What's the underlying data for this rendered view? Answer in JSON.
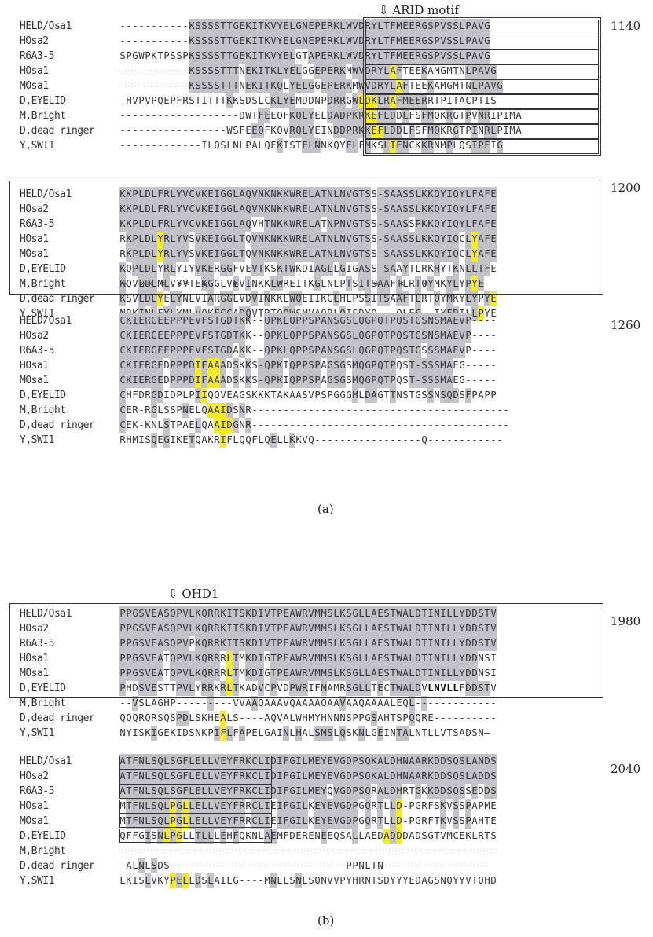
{
  "figure": {
    "panel_a": {
      "caption": "(a)",
      "motif_label": "⇩ ARID motif",
      "stars": "*  ** *  **  *    *                      *   *   *",
      "blocks": [
        {
          "number": "1140",
          "rows": [
            {
              "label": "HELD/Osa1",
              "seq": "-----------KSSSSTTGEKITKVYELGNEPERKLWVDRYLTFMEERGSPVSSLPAVG",
              "shade": "...........GGGGGGGGGGGGGGGGGGGGGGGGGGGGGGGGGGGGGGGGGGGGGGGGGG"
            },
            {
              "label": "HOsa2",
              "seq": "-----------KSSSSTTGEKITKVYELGNEPERKLWVDRYLTFMEERGSPVSSLPAVG",
              "shade": "...........GGGGGGGGGGGGGGGGGGGGGGGGGGGGGGGGGGGGGGGGGGGGGGGGGGG"
            },
            {
              "label": "R6A3-5",
              "seq": "SPGWPKTPSSPKSSSSTTGEKITKVYELGTAPERKLWVDRYLTFMEERGSPVSSLPAVG",
              "shade": "...........GGGGGGGGGGGGGGGGG..GGGGGGGGGGGGGGGGGGGGGGGGGGGGGG"
            },
            {
              "label": "HOsa1",
              "seq": "-----------KSSSSTTTNEKITKLYELGGEPERKMWVDRYLAFTEEKAMGMTNLPAVG",
              "shade": "...........GGGGGGGG.GGGGGGGGG..GGGGG.GGGGGGYG...G......GGGGG"
            },
            {
              "label": "MOsa1",
              "seq": "-----------KSSSSTTTNEKITKQLYELGGEPERKMWVDRYLAFTEEKAMGMTNLPAVG",
              "shade": "...........GGGGGGGG.GGGGGG.GGGG.GGGGG.GGGGGGYG...G......GGGGG"
            },
            {
              "label": "D,EYELID",
              "seq": "-HVPVPQEPFRSTITTTKKSDSLCKLYEMDDNPDRRGWLDKLRAFMEERRTPITACPTIS",
              "shade": ".................G......GGGG.....GGG.GYYYGGYGGGGG.........."
            },
            {
              "label": "M,Bright",
              "seq": "-------------------DWTFEEQFKQLYELDADPKRKEFLDDLFSFMQKRGTPVNRIPIMA",
              "shade": "......................GG...GGGG..GGGGGGYYGGG.G..GG..G..G.GG.."
            },
            {
              "label": "D,dead ringer",
              "seq": "-----------------WSFEEQFKQVRQLYEINDDPRKKEFLDDLFSFMQKRGTPINRLPIMA",
              "shade": ".....................GG....GGGG...GGGGGGYYGGG.G..GG..G..G.GG.."
            },
            {
              "label": "Y,SWI1",
              "seq": "-------------ILQSLNLPALQEKISTELNNKQYELFMKSLIENCKKRNMPLQSIPEIG",
              "shade": ".........................G...GGG....GG.G..GYGG..GG..G...GGG.G"
            }
          ]
        },
        {
          "number": "1200",
          "rows": [
            {
              "label": "HELD/Osa1",
              "seq": "KKPLDLFRLYVCVKEIGGLAQVNKNKKWRELATNLNVGTSS-SAASSLKKQYIQYLFAFE",
              "shade": "GGGGGGGGGGGGGGGGGGGGGGGGGGGGGGGGGGGGGGGG.GGGGGGGGGGGGGGGGGGG"
            },
            {
              "label": "HOsa2",
              "seq": "KKPLDLFRLYVCVKEIGGLAQVNKNKKWRELATNLNVGTSS-SAASSLKKQYIQYLFAFE",
              "shade": "GGGGGGGGGGGGGGGGGGGGGGGGGGGGGGGGGGGGGGGG.GGGGGGGGGGGGGGGGGGG"
            },
            {
              "label": "R6A3-5",
              "seq": "KKPLDLFRLYVCVKEIGGLAQVHTNKKWRELATNPNVGTSS-SAASSPKKQYIQYLFAFE",
              "shade": "GGGGGGGGGGGGGGGGGGGGG..GGGGGGGGG.GGGGGGG.GGGGG.GGGGGGGGGGGGG"
            },
            {
              "label": "HOsa1",
              "seq": "RKPLDLYRLYVSVKEIGGLTQVNKNKKWRELATNLNVGTSS-SAASSLKKQYIQCLYAFE",
              "shade": ".GGGGGYGGGG.GGGGGGGG.GGGGGGGGGGGGGGGGGGG.GGGGGGGGGGGGG.GYGGG"
            },
            {
              "label": "MOsa1",
              "seq": "RKPLDLYRLYVSVKEIGGLTQVNKNKKWRELATNLNVGTSS-SAASSLKKQYIQCLYAFE",
              "shade": ".GGGGGYGGGG.GGGGGGGG.GGGGGGGGGGGGGGGGGGG.GGGGGGGGGGGGG.GYGGG"
            },
            {
              "label": "D,EYELID",
              "seq": "KQPLDLYRLYIYVKERGGFVEVTKSKTWKDIAGLLGIGASS-SAAYTLRKHYTKNLLTFE",
              "shade": "G.GGGG.GG...GGG.GG...GG..GGG...GGG.G..GG.GGG.G....G..G.GGGG"
            },
            {
              "label": "M,Bright",
              "seq": "KQVLDLMLVYVTEKGGLVEVINKKLWREITKGLNLPTSITSAAFTLRTQYMKYLYPYE",
              "shade": "G..GGG.G.....GG...G.G...GG.....G....G.GG.GG.G..G.G..GG.GYGYG"
            },
            {
              "label": "D,dead ringer",
              "seq": "KSVLDLYELYNLVIARGGLVDVINKKLWQEIIKGLHLPSSITSAAFTLRTQYMKYLYPYE",
              "shade": "G..GGGY.GG....G.GG...G.G...GG.....G....G.GG.GG.G..G.G..GG.GYGYG"
            },
            {
              "label": "Y,SWI1",
              "seq": "NRKINLFYLYMLVQKFGGADQVTRTQQWSMVAQRLQISDYQ---QLES--IYFRILLPYE",
              "shade": "...G.G.GG...G..GGG.GG.....GG.......G...........G....GG..GY."
            }
          ]
        },
        {
          "number": "1260",
          "rows": [
            {
              "label": "HELD/Osa1",
              "seq": "CKIERGEEPPPEVFSTGDTKK--QPKLQPPSPANSGSLQGPQTPQSTGSNSMAEVP----",
              "shade": "GGGGGGGGGGGGGGGGGGGG...GGGGGGGGGGGGGGGGGGGGGGGGGGGGGGGGG...."
            },
            {
              "label": "HOsa2",
              "seq": "CKIERGEEPPPEVFSTGDTKK--QPKLQPPSPANSGSLQGPQTPQSTGSNSMAEVP----",
              "shade": "GGGGGGGGGGGGGGGGGGGG...GGGGGGGGGGGGGGGGGGGGGGGGGGGGGGGGG...."
            },
            {
              "label": "R6A3-5",
              "seq": "CKIERGEEPPPEVFSTGDAKK--QPKLQPPSPANSGSLQGPQTPQSTGSSSMAEVP----",
              "shade": "GGGGGGGGGGGGGGGGGG.G...GGGGGGGGGGGGGGGGGGGGGGGGG.GGGGGG...."
            },
            {
              "label": "HOsa1",
              "seq": "CKIERGEDPPPDIFAAADSKKS-QPKIQPPSPAGSGSMQGPQTPQST-SSSMAEG-----",
              "shade": "GGGGGGG.GGGGYGYYG.G.G.GGGG.GGGGG.GGG.GGGGGGG..GGGGGGG......"
            },
            {
              "label": "MOsa1",
              "seq": "CKIERGEDPPPDIFAAADSKKS-QPKIQPPSPAGSGSMQGPQTPQST-SSSMAEG-----",
              "shade": "GGGGGGG.GGGGYGYYG.G.G.GGGG.GGGGG.GGG.GGGGGGG..GGGGGGG......"
            },
            {
              "label": "D,EYELID",
              "seq": "CHFDRGDIDPLPIIQQVEAGSKKKTAKAASVPSPGGGHLDAGTTNSTGSSNSQDSFPAPP",
              "shade": "G....GG.....GY.......................G.GG..G.....G.GGG.G......"
            },
            {
              "label": "M,Bright",
              "seq": "CER-RGLSSPNELQAAIDSNR-----------------------------------------",
              "shade": "G....G....G...YYYG.G........................................."
            },
            {
              "label": "D,dead ringer",
              "seq": "CEK-KNLSTPAELQAAIDGNR-----------------------------------------",
              "shade": "G......G....G..YYYG.G........................................"
            },
            {
              "label": "Y,SWI1",
              "seq": "RHMISQEGIKETQAKRIFLQQFLQELLKKVQ-----------------Q------------",
              "shade": ".....G.G...G....Y.......G..G................................"
            }
          ]
        }
      ]
    },
    "panel_b": {
      "caption": "(b)",
      "motif_label": "⇩ OHD1",
      "blocks": [
        {
          "number": "1980",
          "rows": [
            {
              "label": "HELD/Osa1",
              "seq": "PPGSVEASQPVLKQRRKITSKDIVTPEAWRVMMSLKSGLLAESTWALDTINILLYDDSTV",
              "shade": "GGGGGGGGGGGGGGGGGGGGGGGGGGGGGGGGGGGGGGGGGGGGGGGGGGGGGGGGGGGG"
            },
            {
              "label": "HOsa2",
              "seq": "PPGSVEASQPVLKQRRKITSKDIVTPEAWRVMMSLKSGLLAESTWALDTINILLYDDSTV",
              "shade": "GGGGGGGGGGGGGGGGGGGGGGGGGGGGGGGGGGGGGGGGGGGGGGGGGGGGGGGGGGGG"
            },
            {
              "label": "R6A3-5",
              "seq": "PPGSVEASQPVPKQRRKITSKDIVTPEAWRVMMSLKSGLLAESTWALDTINILLYDDSTV",
              "shade": "GGGGGGGGGGG.GGGGGGGGGGGGGGGGGGGGGGGGGGGGGGGGGGGGGGGGGGGGGGGG"
            },
            {
              "label": "HOsa1",
              "seq": "PPGSVEATQPVLKQRRRLTMKDIGTPEAWRVMMSLKSGLLAESTWALDTINILLYDDNSI",
              "shade": "GGGGGGG.GGGGGGGG.YG.GGG.GGGGGGGGGGGGGGGGGGGGGGGGGGGGGGGGG..."
            },
            {
              "label": "MOsa1",
              "seq": "PPGSVEATQPVLKQRRRLTMKDIGTPEAWRVMMSLKSGLLAESTWALDTINILLYDDNSI",
              "shade": "GGGGGGG.GGGGGGGG.YG.GGG.GGGGGGGGGGGGGGGGGGGGGGGGGGGGGGGGG..."
            },
            {
              "label": "D,EYELID",
              "seq": "PHDSVESTTPVLYRRKRLTKADVCPVDPWRIFMAMRSGLLTECTWALDVLNVLLFDDSTV",
              "shade": "G..GGG...GGG.GG.GYG...G.G..GGG..G...GGGG.G.GGGGG.BBBBB.GGGG",
              "bold": [
                49,
                50,
                51,
                52,
                53
              ]
            },
            {
              "label": "M,Bright",
              "seq": "--VSLAGHP---------VVAAQAAAVQAAAAQAAVAAQAAAALEQL-------------",
              "shade": "..G...........G......G.............G..........G.G............."
            },
            {
              "label": "D,dead ringer",
              "seq": "QQQRQRSQSPDLSKHEALS----AQVALWHMYHNNNSPPGSAHTSPQQRE----------",
              "shade": ".........GG.....Y.......................G.....G................"
            },
            {
              "label": "Y,SWI1",
              "seq": "NYISKIGEKIDSNKPIFLFAPELGAINLHALSMSLQSKNLGEINTALNTLLVTSADSN–",
              "shade": ".....G.........GYG.G......G.G..GGG.G..G..G..GG......."
            }
          ]
        },
        {
          "number": "2040",
          "rows": [
            {
              "label": "HELD/Osa1",
              "seq": "ATFNLSQLSGFLELLVEYFRKCLIDIFGILMEYEVGDPSQKALDHNAARKDDSQSLANDS",
              "shade": "GGGGGGGGGGGGGGGGGGGGGGGGGGGGGGGGGGGGGGGGGGGGGGGGGGGGGGGGGGGG"
            },
            {
              "label": "HOsa2",
              "seq": "ATFNLSQLSGFLELLVEYFRKCLIDIFGILMEYEVGDPSQKALDHNAARKDDSQSLADDS",
              "shade": "GGGGGGGGGGGGGGGGGGGGGGGGGGGGGGGGGGGGGGGGGGGGGGGGGGGGGGGGGGGG"
            },
            {
              "label": "R6A3-5",
              "seq": "ATFNLSQLSGFLELLVEYFRKCLIDIFGILMEYQVGDPSQRALDHRTGKKDDSQSSEDDS",
              "shade": "GGGGGGGGGGGGGGGGGGGGGGGGGGGGGGGGG.GGGGGG.GGGG..G.GGGGGG.G.GG"
            },
            {
              "label": "HOsa1",
              "seq": "MTFNLSQLPGLLELLVEYFRRCLIEIFGILKEYEVGDPGQRTLLD-PGRFSKVSSPAPME",
              "shade": ".GGGGGGGYGYGGGGGGGGG.GGG.GGGGG.GGGGGGG.G.G.GY......G.G.G...."
            },
            {
              "label": "MOsa1",
              "seq": "MTFNLSQLPGLLELLVEYFRRCLIEIFGILKEYEVGDPGQRTLLD-PGRFTKVSSPAHTE",
              "shade": ".GGGGGGGYGYGGGGGGGGG.GGG.GGGGG.GGGGGGG.G.G.GY......G.G.G...."
            },
            {
              "label": "D,EYELID",
              "seq": "QFFGISNLPGLLTLLLEHFQKNLAEMFDERENEEQSALLAEDADDDADSGTVMCEKLRTS",
              "shade": "....G.GYGY..GGG.G.G....GG.......G....G....YGY............"
            },
            {
              "label": "M,Bright",
              "seq": "------------------------------------------------------------",
              "shade": "............................................................"
            },
            {
              "label": "D,dead ringer",
              "seq": "-ALNLSDS----------------------------PPNLTN-----------------",
              "shade": "...G.G......................................................"
            },
            {
              "label": "Y,SWI1",
              "seq": "LKISLVKYPELLDSLAILG----MNLLSNLSQNVVPYHRNTSDYYYEDAGSNQYYVTQHD",
              "shade": "....G...YGY.G.G.........G...G...................................."
            }
          ]
        }
      ]
    }
  }
}
